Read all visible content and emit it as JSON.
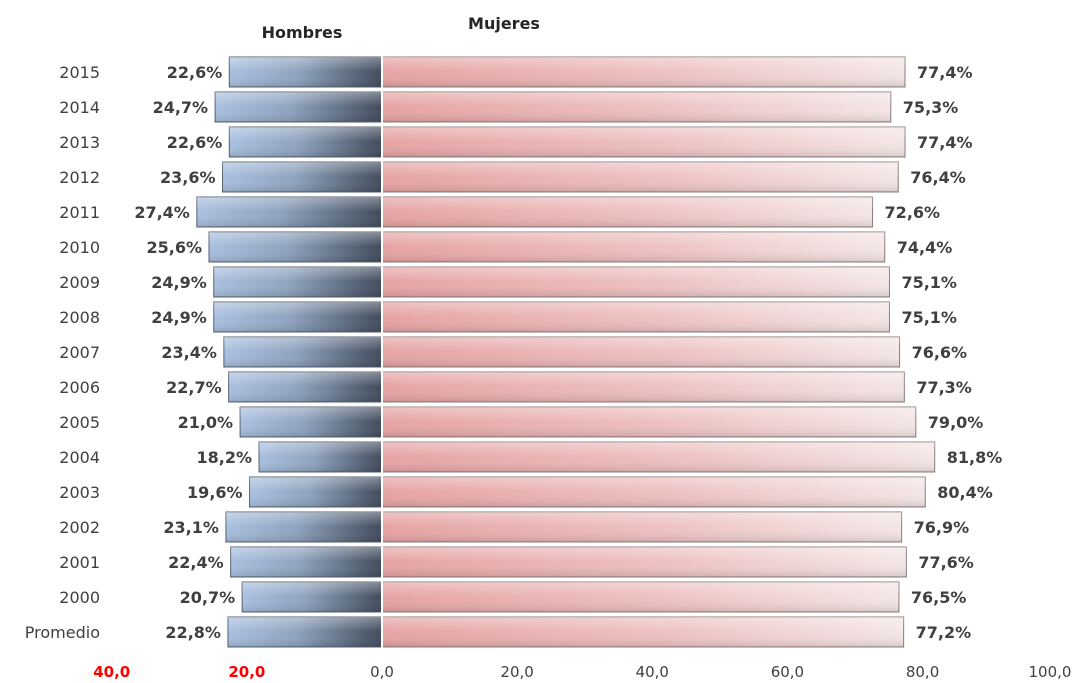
{
  "chart_data": {
    "type": "bar",
    "orientation": "horizontal",
    "layout": "back-to-back",
    "categories": [
      "2015",
      "2014",
      "2013",
      "2012",
      "2011",
      "2010",
      "2009",
      "2008",
      "2007",
      "2006",
      "2005",
      "2004",
      "2003",
      "2002",
      "2001",
      "2000",
      "Promedio"
    ],
    "series": [
      {
        "name": "Hombres",
        "values": [
          22.6,
          24.7,
          22.6,
          23.6,
          27.4,
          25.6,
          24.9,
          24.9,
          23.4,
          22.7,
          21.0,
          18.2,
          19.6,
          23.1,
          22.4,
          20.7,
          22.8
        ],
        "labels": [
          "22,6%",
          "24,7%",
          "22,6%",
          "23,6%",
          "27,4%",
          "25,6%",
          "24,9%",
          "24,9%",
          "23,4%",
          "22,7%",
          "21,0%",
          "18,2%",
          "19,6%",
          "23,1%",
          "22,4%",
          "20,7%",
          "22,8%"
        ],
        "color": "#8fa6c4"
      },
      {
        "name": "Mujeres",
        "values": [
          77.4,
          75.3,
          77.4,
          76.4,
          72.6,
          74.4,
          75.1,
          75.1,
          76.6,
          77.3,
          79.0,
          81.8,
          80.4,
          76.9,
          77.6,
          76.5,
          77.2
        ],
        "labels": [
          "77,4%",
          "75,3%",
          "77,4%",
          "76,4%",
          "72,6%",
          "74,4%",
          "75,1%",
          "75,1%",
          "76,6%",
          "77,3%",
          "79,0%",
          "81,8%",
          "80,4%",
          "76,9%",
          "77,6%",
          "76,5%",
          "77,2%"
        ],
        "color": "#e3aaaa"
      }
    ],
    "xlim": [
      -40,
      100
    ],
    "x_ticks": [
      -40,
      -20,
      0,
      20,
      40,
      60,
      80,
      100
    ],
    "x_tick_labels": [
      "40,0",
      "20,0",
      "0,0",
      "20,0",
      "40,0",
      "60,0",
      "80,0",
      "100,0"
    ],
    "x_tick_colors": [
      "#ff0000",
      "#ff0000",
      "#404040",
      "#404040",
      "#404040",
      "#404040",
      "#404040",
      "#404040"
    ],
    "grid": false,
    "legend": "none"
  }
}
